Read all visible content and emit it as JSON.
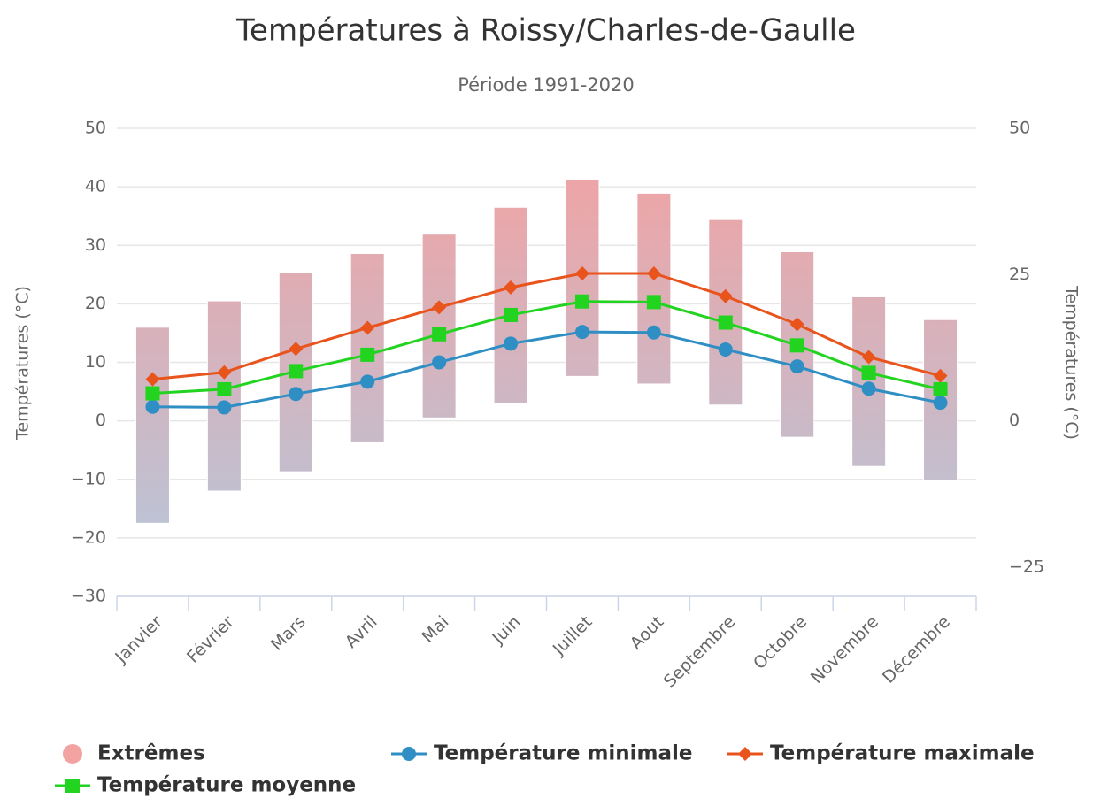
{
  "chart_data": {
    "type": "columnrange-line",
    "title": "Températures à Roissy/Charles-de-Gaulle",
    "subtitle": "Période 1991-2020",
    "y_label": "Températures (°C)",
    "y2_label": "Températures (°C)",
    "categories": [
      "Janvier",
      "Février",
      "Mars",
      "Avril",
      "Mai",
      "Juin",
      "Juillet",
      "Aout",
      "Septembre",
      "Octobre",
      "Novembre",
      "Décembre"
    ],
    "ylim": [
      -30,
      50
    ],
    "yticks": [
      {
        "value": -30,
        "label": "−30"
      },
      {
        "value": -20,
        "label": "−20"
      },
      {
        "value": -10,
        "label": "−10"
      },
      0,
      10,
      20,
      30,
      40,
      50
    ],
    "y2lim": [
      -30,
      50
    ],
    "y2ticks": [
      {
        "value": -25,
        "label": "−25"
      },
      0,
      25,
      50
    ],
    "grid": true,
    "legend": "bottom-left",
    "series": [
      {
        "name": "Extrêmes",
        "type": "range",
        "color": "#f4a3a3",
        "gradient": [
          "#f4a0a0",
          "#b3c8dd"
        ],
        "values": [
          [
            -17.5,
            16
          ],
          [
            -12,
            20.5
          ],
          [
            -8.7,
            25.3
          ],
          [
            -3.6,
            28.6
          ],
          [
            0.5,
            31.9
          ],
          [
            2.9,
            36.5
          ],
          [
            7.6,
            41.3
          ],
          [
            6.3,
            38.9
          ],
          [
            2.7,
            34.4
          ],
          [
            -2.8,
            28.9
          ],
          [
            -7.8,
            21.2
          ],
          [
            -10.2,
            17.3
          ]
        ]
      },
      {
        "name": "Température minimale",
        "type": "line",
        "marker": "circle",
        "color": "#2f8fc4",
        "values": [
          2.4,
          2.3,
          4.6,
          6.7,
          10.0,
          13.2,
          15.2,
          15.1,
          12.2,
          9.3,
          5.5,
          3.1
        ]
      },
      {
        "name": "Température maximale",
        "type": "line",
        "marker": "diamond",
        "color": "#e8541c",
        "values": [
          7.1,
          8.3,
          12.3,
          15.9,
          19.4,
          22.8,
          25.2,
          25.2,
          21.3,
          16.5,
          10.9,
          7.7
        ]
      },
      {
        "name": "Température moyenne",
        "type": "line",
        "marker": "square",
        "color": "#22d41f",
        "values": [
          4.7,
          5.4,
          8.5,
          11.3,
          14.8,
          18.1,
          20.4,
          20.3,
          16.8,
          12.9,
          8.2,
          5.4
        ]
      }
    ]
  }
}
